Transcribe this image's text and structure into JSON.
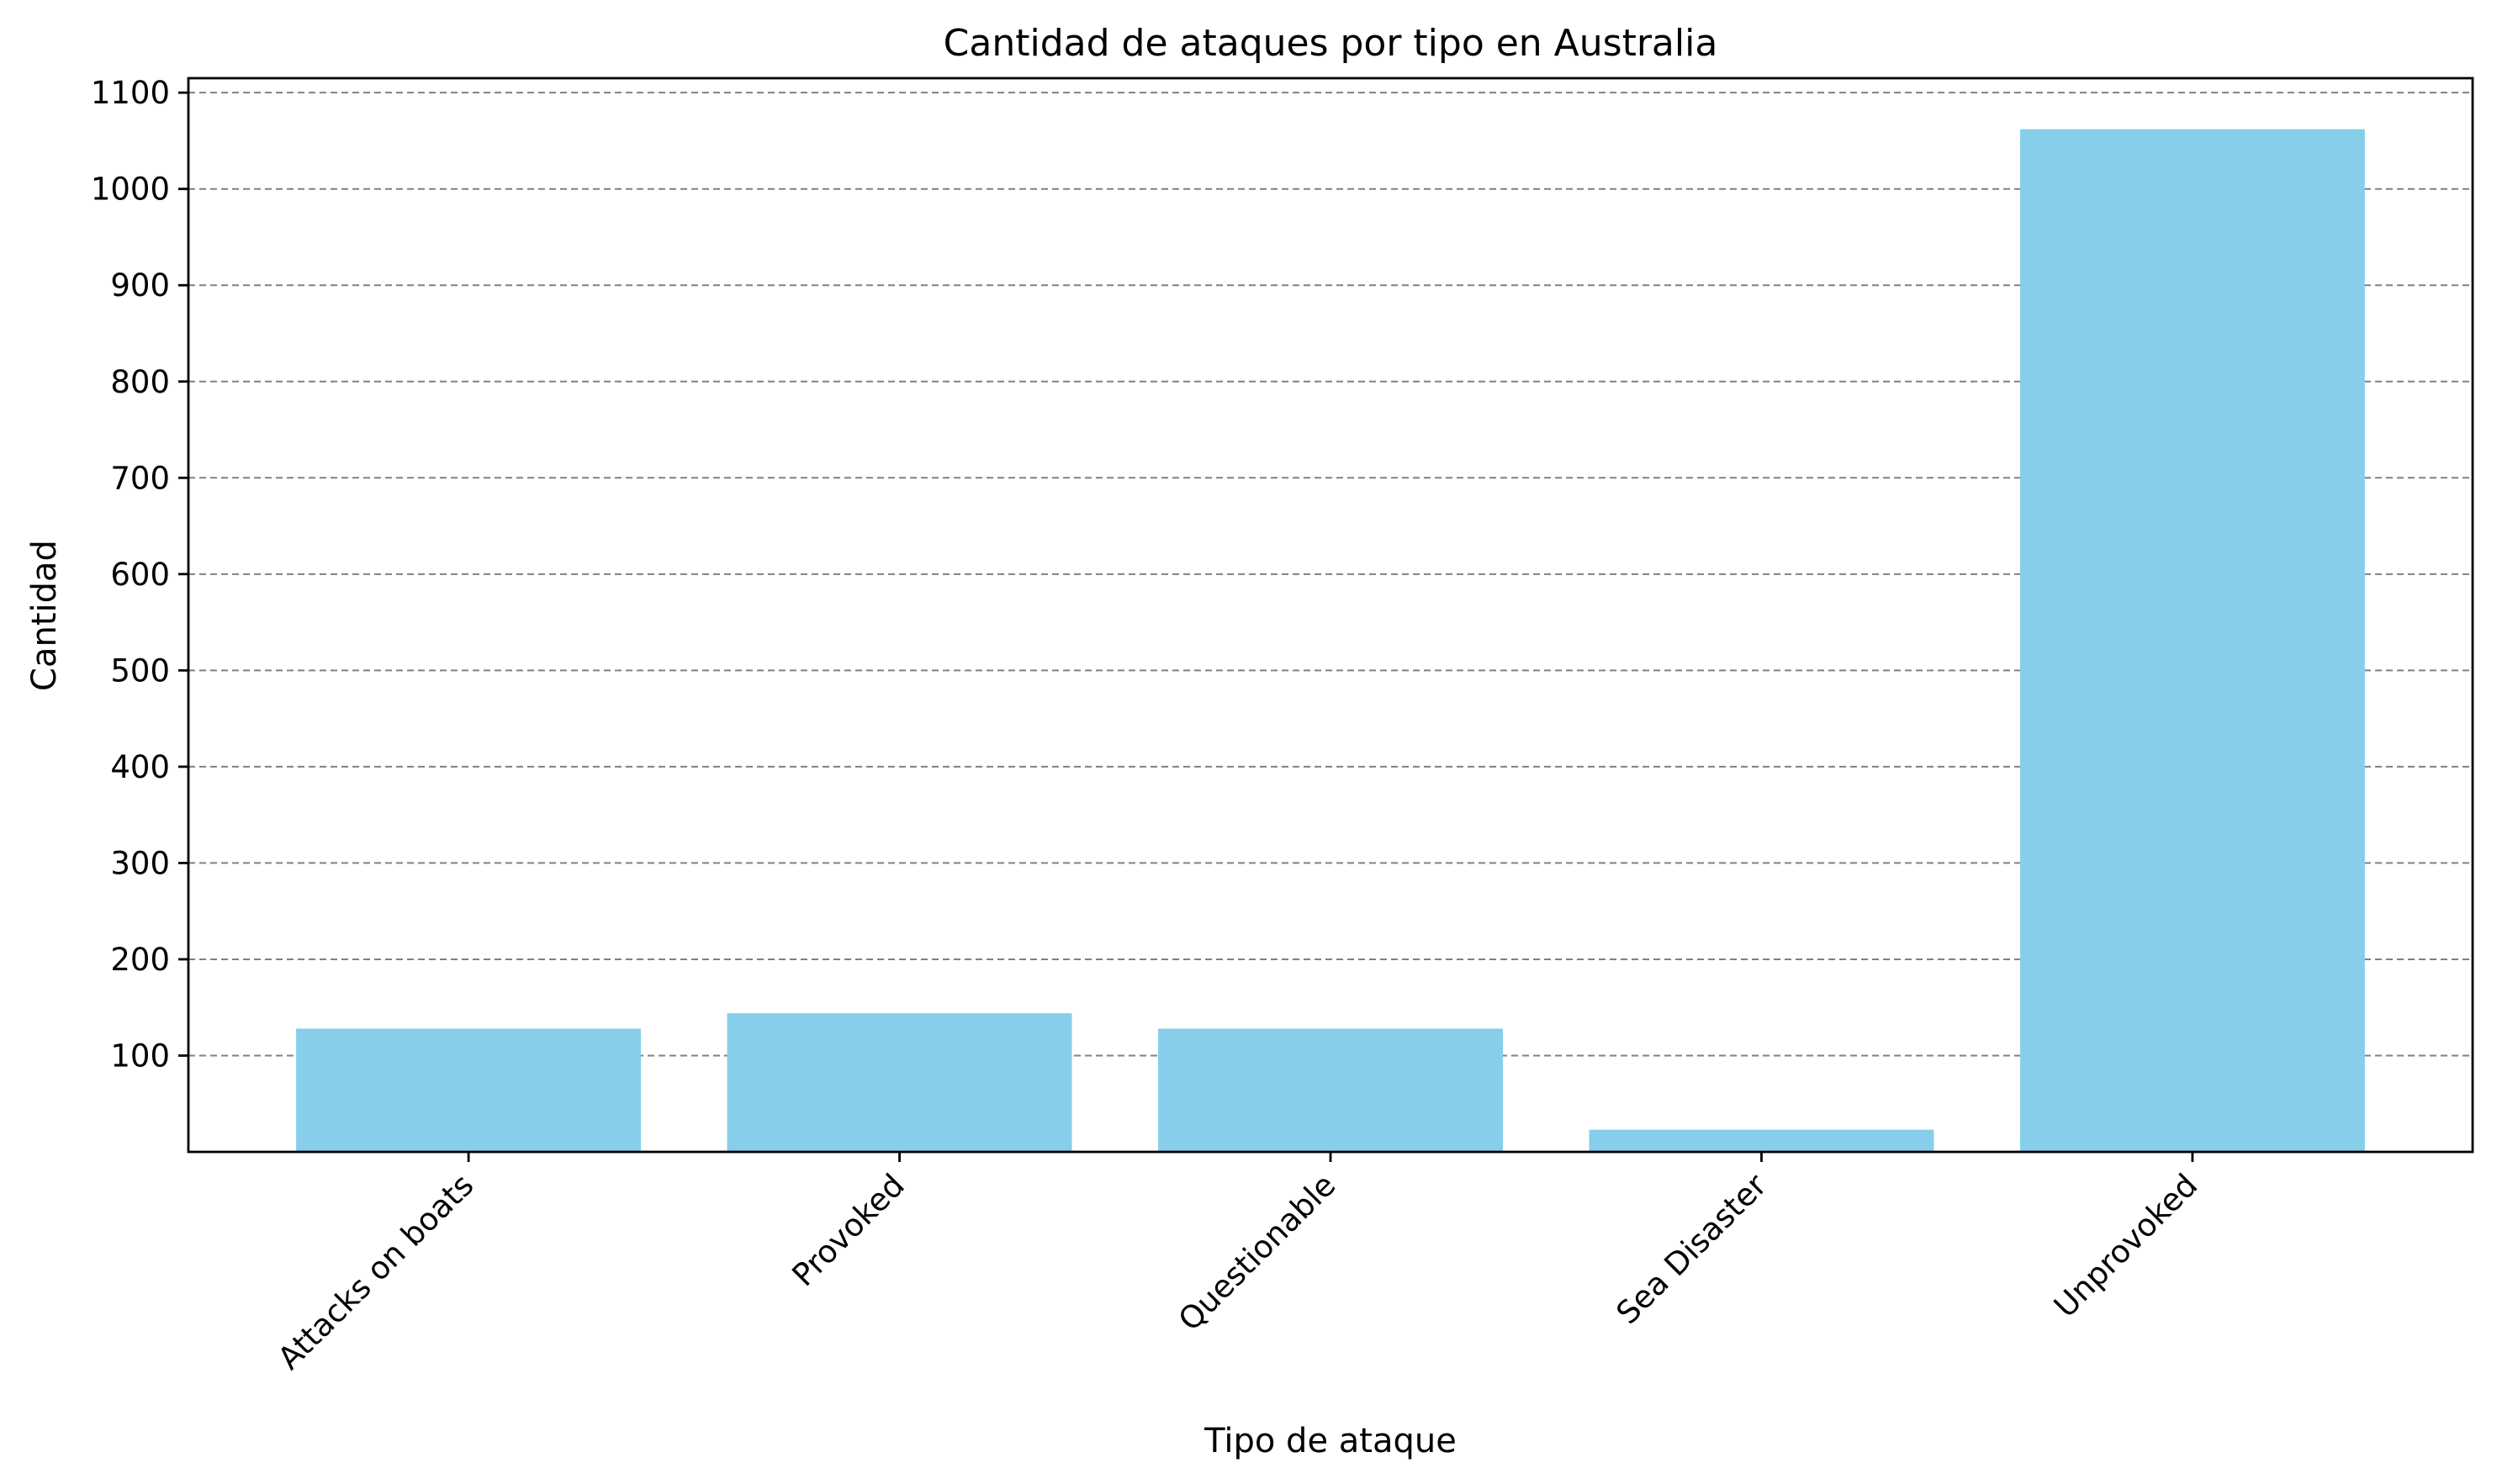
{
  "chart_data": {
    "type": "bar",
    "title": "Cantidad de ataques por tipo en Australia",
    "xlabel": "Tipo de ataque",
    "ylabel": "Cantidad",
    "categories": [
      "Attacks on boats",
      "Provoked",
      "Questionable",
      "Sea Disaster",
      "Unprovoked"
    ],
    "values": [
      128,
      144,
      128,
      23,
      1062
    ],
    "ylim": [
      0,
      1115
    ],
    "yticks": [
      100,
      200,
      300,
      400,
      500,
      600,
      700,
      800,
      900,
      1000,
      1100
    ],
    "grid": "y-dashed",
    "bar_color": "#87CEEB",
    "legend": "none"
  }
}
